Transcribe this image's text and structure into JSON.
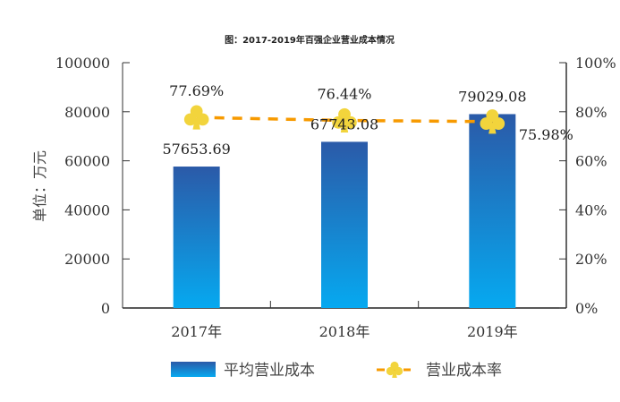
{
  "chart_data": {
    "type": "bar",
    "title": "图：2017-2019年百强企业营业成本情况",
    "categories": [
      "2017年",
      "2018年",
      "2019年"
    ],
    "ylabel": "单位：万元",
    "xlabel": "",
    "ylim": [
      0,
      100000
    ],
    "y_ticks": [
      "0",
      "20000",
      "40000",
      "60000",
      "80000",
      "100000"
    ],
    "y2lim": [
      0,
      100
    ],
    "y2_ticks": [
      "0%",
      "20%",
      "40%",
      "60%",
      "80%",
      "100%"
    ],
    "grid": false,
    "legend_position": "bottom",
    "series": [
      {
        "name": "平均营业成本",
        "type": "bar",
        "axis": "left",
        "values": [
          57653.69,
          67743.08,
          79029.08
        ],
        "labels": [
          "57653.69",
          "67743.08",
          "79029.08"
        ],
        "color_top": "#2b5aa8",
        "color_bottom": "#06a9f0"
      },
      {
        "name": "营业成本率",
        "type": "line",
        "axis": "right",
        "values": [
          77.69,
          76.44,
          75.98
        ],
        "labels": [
          "77.69%",
          "76.44%",
          "75.98%"
        ],
        "line_color": "#f79a00",
        "marker": "club-icon",
        "marker_color": "#f2d43c"
      }
    ]
  }
}
